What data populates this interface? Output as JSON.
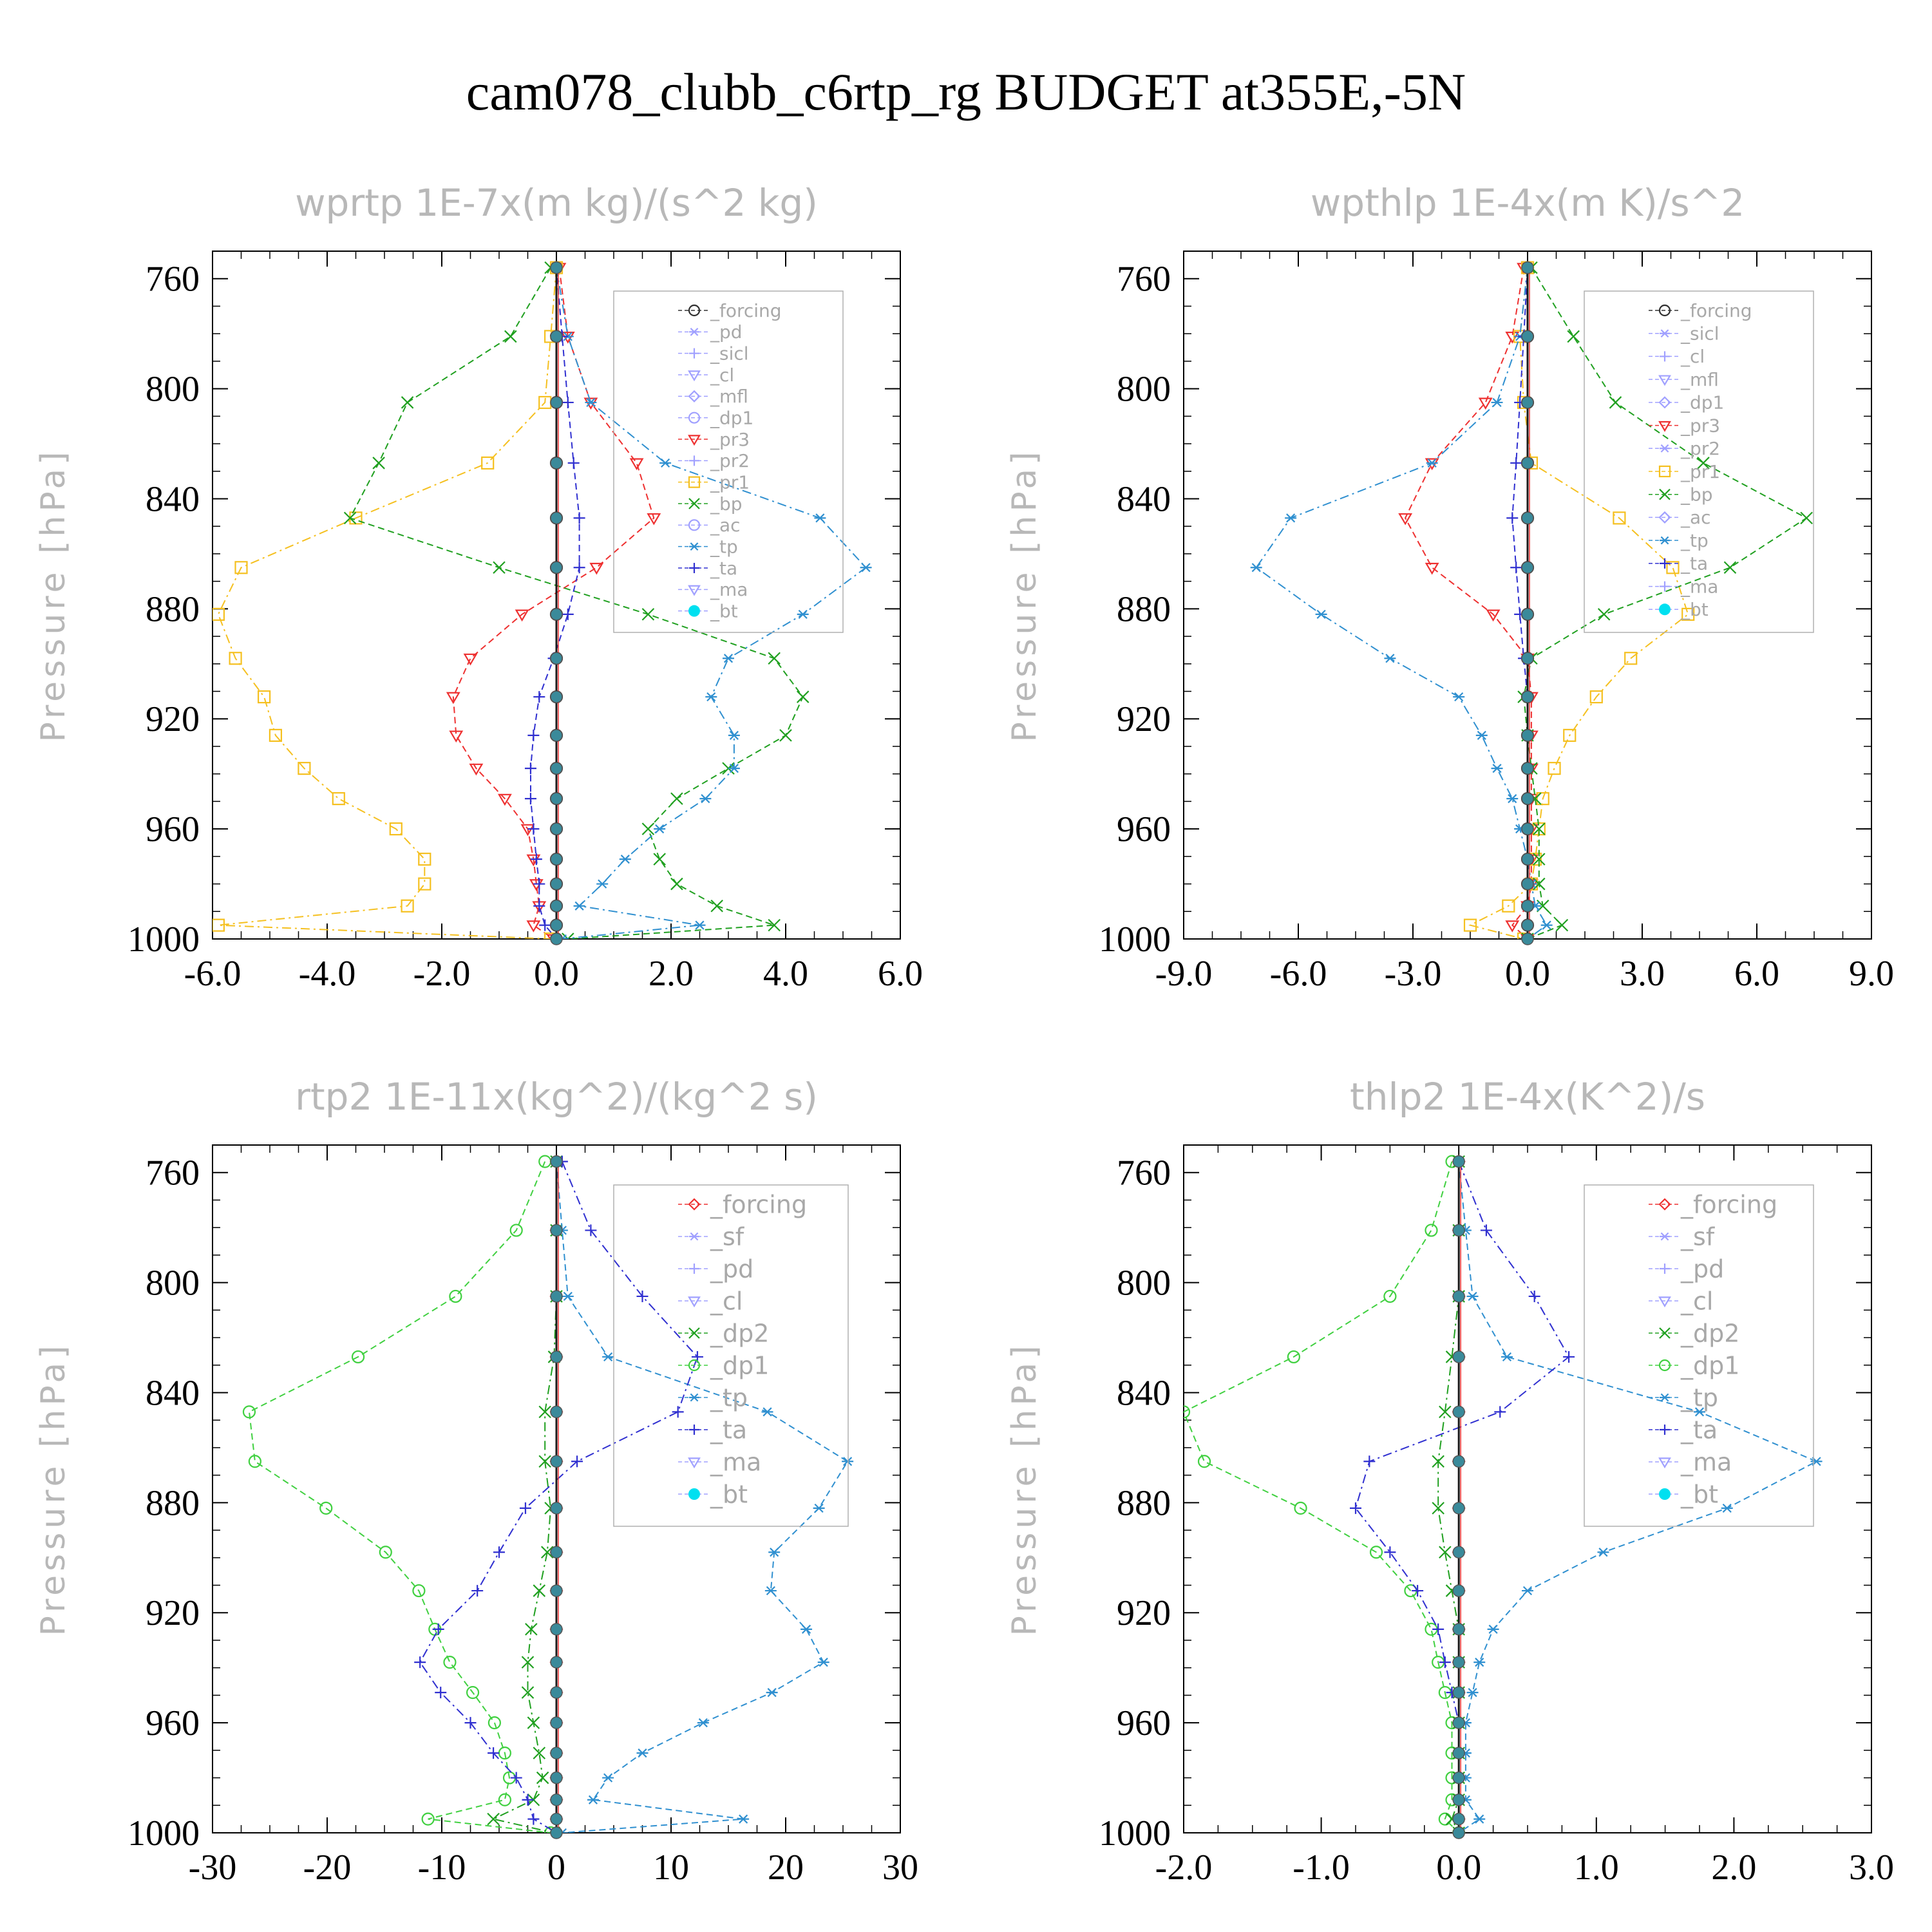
{
  "title": "cam078_clubb_c6rtp_rg  BUDGET at355E,-5N",
  "chart_data": [
    {
      "type": "line",
      "title": "wprtp   1E-7x(m kg)/(s^2 kg)",
      "ylabel": "Pressure [hPa]",
      "xlim": [
        -6,
        6
      ],
      "ylim": [
        750,
        1000
      ],
      "x_ticks": [
        -6,
        -4,
        -2,
        0,
        2,
        4,
        6
      ],
      "x_tick_labels": [
        "-6.0",
        "-4.0",
        "-2.0",
        "0.0",
        "2.0",
        "4.0",
        "6.0"
      ],
      "y_ticks": [
        760,
        800,
        840,
        880,
        920,
        960,
        1000
      ],
      "y_tick_labels": [
        "760",
        "800",
        "840",
        "880",
        "920",
        "960",
        "1000"
      ],
      "levels": [
        756,
        781,
        805,
        827,
        847,
        865,
        882,
        898,
        912,
        926,
        938,
        949,
        960,
        971,
        980,
        988,
        995,
        1000
      ],
      "legend": [
        "_forcing",
        "_pd",
        "_sicl",
        "_cl",
        "_mfl",
        "_dp1",
        "_pr3",
        "_pr2",
        "_pr1",
        "_bp",
        "_ac",
        "_tp",
        "_ta",
        "_ma",
        "_bt"
      ],
      "series": [
        {
          "name": "_forcing",
          "color": "#303030",
          "marker": "circle",
          "values": [
            0,
            0,
            0,
            0,
            0,
            0,
            0,
            0,
            0,
            0,
            0,
            0,
            0,
            0,
            0,
            0,
            0,
            0
          ]
        },
        {
          "name": "_pr3",
          "color": "#ee3030",
          "marker": "tri-down",
          "values": [
            0.05,
            0.2,
            0.6,
            1.4,
            1.7,
            0.7,
            -0.6,
            -1.5,
            -1.8,
            -1.75,
            -1.4,
            -0.9,
            -0.5,
            -0.4,
            -0.35,
            -0.3,
            -0.4,
            -0.05
          ]
        },
        {
          "name": "_pr1",
          "color": "#f5c020",
          "marker": "square",
          "values": [
            0,
            -0.1,
            -0.2,
            -1.2,
            -3.5,
            -5.5,
            -5.9,
            -5.6,
            -5.1,
            -4.9,
            -4.4,
            -3.8,
            -2.8,
            -2.3,
            -2.3,
            -2.6,
            -5.9,
            -0.1
          ]
        },
        {
          "name": "_bp",
          "color": "#20a020",
          "marker": "x",
          "values": [
            -0.1,
            -0.8,
            -2.6,
            -3.1,
            -3.6,
            -1,
            1.6,
            3.8,
            4.3,
            4,
            3,
            2.1,
            1.6,
            1.8,
            2.1,
            2.8,
            3.8,
            0.2
          ]
        },
        {
          "name": "_tp",
          "color": "#3090d0",
          "marker": "star",
          "values": [
            0,
            0.2,
            0.6,
            1.9,
            4.6,
            5.4,
            4.3,
            3,
            2.7,
            3.1,
            3.1,
            2.6,
            1.8,
            1.2,
            0.8,
            0.4,
            2.5,
            0.1
          ]
        },
        {
          "name": "_ta",
          "color": "#3030d0",
          "marker": "plus",
          "values": [
            0,
            0.1,
            0.2,
            0.3,
            0.4,
            0.4,
            0.2,
            -0.05,
            -0.3,
            -0.4,
            -0.45,
            -0.45,
            -0.4,
            -0.35,
            -0.3,
            -0.3,
            -0.2,
            0
          ]
        }
      ]
    },
    {
      "type": "line",
      "title": "wpthlp   1E-4x(m K)/s^2",
      "ylabel": "Pressure [hPa]",
      "xlim": [
        -9,
        9
      ],
      "ylim": [
        750,
        1000
      ],
      "x_ticks": [
        -9,
        -6,
        -3,
        0,
        3,
        6,
        9
      ],
      "x_tick_labels": [
        "-9.0",
        "-6.0",
        "-3.0",
        "0.0",
        "3.0",
        "6.0",
        "9.0"
      ],
      "y_ticks": [
        760,
        800,
        840,
        880,
        920,
        960,
        1000
      ],
      "y_tick_labels": [
        "760",
        "800",
        "840",
        "880",
        "920",
        "960",
        "1000"
      ],
      "levels": [
        756,
        781,
        805,
        827,
        847,
        865,
        882,
        898,
        912,
        926,
        938,
        949,
        960,
        971,
        980,
        988,
        995,
        1000
      ],
      "legend": [
        "_forcing",
        "_sicl",
        "_cl",
        "_mfl",
        "_dp1",
        "_pr3",
        "_pr2",
        "_pr1",
        "_bp",
        "_ac",
        "_tp",
        "_ta",
        "_ma",
        "_bt"
      ],
      "series": [
        {
          "name": "_forcing",
          "color": "#303030",
          "marker": "circle",
          "values": [
            0,
            0,
            0,
            0,
            0,
            0,
            0,
            0,
            0,
            0,
            0,
            0,
            0,
            0,
            0,
            0,
            0,
            0
          ]
        },
        {
          "name": "_pr3",
          "color": "#ee3030",
          "marker": "tri-down",
          "values": [
            -0.1,
            -0.4,
            -1.1,
            -2.5,
            -3.2,
            -2.5,
            -0.9,
            0,
            0.1,
            0.1,
            0.1,
            0.1,
            0.1,
            0.1,
            0.1,
            0,
            -0.4,
            0
          ]
        },
        {
          "name": "_pr1",
          "color": "#f5c020",
          "marker": "square",
          "values": [
            0,
            -0.2,
            -0.1,
            0.1,
            2.4,
            3.8,
            4.2,
            2.7,
            1.8,
            1.1,
            0.7,
            0.4,
            0.3,
            0.2,
            0.1,
            -0.5,
            -1.5,
            -0.1
          ]
        },
        {
          "name": "_bp",
          "color": "#20a020",
          "marker": "x",
          "values": [
            0.1,
            1.2,
            2.3,
            4.6,
            7.3,
            5.3,
            2,
            0.1,
            -0.1,
            0,
            0.1,
            0.2,
            0.3,
            0.3,
            0.3,
            0.4,
            0.9,
            0
          ]
        },
        {
          "name": "_tp",
          "color": "#3090d0",
          "marker": "star",
          "values": [
            0,
            -0.2,
            -0.8,
            -2.5,
            -6.2,
            -7.1,
            -5.4,
            -3.6,
            -1.8,
            -1.2,
            -0.8,
            -0.4,
            -0.2,
            0,
            0.1,
            0.2,
            0.5,
            0
          ]
        },
        {
          "name": "_ta",
          "color": "#3030d0",
          "marker": "plus",
          "values": [
            0,
            -0.1,
            -0.2,
            -0.3,
            -0.4,
            -0.3,
            -0.2,
            -0.1,
            0,
            0,
            0,
            0,
            0,
            0,
            0,
            0,
            0,
            0
          ]
        }
      ]
    },
    {
      "type": "line",
      "title": "rtp2   1E-11x(kg^2)/(kg^2 s)",
      "ylabel": "Pressure [hPa]",
      "xlim": [
        -30,
        30
      ],
      "ylim": [
        750,
        1000
      ],
      "x_ticks": [
        -30,
        -20,
        -10,
        0,
        10,
        20,
        30
      ],
      "x_tick_labels": [
        "-30",
        "-20",
        "-10",
        "0",
        "10",
        "20",
        "30"
      ],
      "y_ticks": [
        760,
        800,
        840,
        880,
        920,
        960,
        1000
      ],
      "y_tick_labels": [
        "760",
        "800",
        "840",
        "880",
        "920",
        "960",
        "1000"
      ],
      "levels": [
        756,
        781,
        805,
        827,
        847,
        865,
        882,
        898,
        912,
        926,
        938,
        949,
        960,
        971,
        980,
        988,
        995,
        1000
      ],
      "legend": [
        "_forcing",
        "_sf",
        "_pd",
        "_cl",
        "_dp2",
        "_dp1",
        "_tp",
        "_ta",
        "_ma",
        "_bt"
      ],
      "series": [
        {
          "name": "_forcing",
          "color": "#ee3030",
          "marker": "diamond",
          "values": [
            0,
            0,
            0,
            0,
            0,
            0,
            0,
            0,
            0,
            0,
            0,
            0,
            0,
            0,
            0,
            0,
            0,
            0
          ]
        },
        {
          "name": "_dp1",
          "color": "#40d040",
          "marker": "circle",
          "values": [
            -1,
            -3.5,
            -8.8,
            -17.3,
            -26.8,
            -26.3,
            -20.1,
            -14.9,
            -12,
            -10.6,
            -9.3,
            -7.3,
            -5.4,
            -4.5,
            -4.1,
            -4.5,
            -11.2,
            -0.5
          ]
        },
        {
          "name": "_dp2",
          "color": "#20a020",
          "marker": "x",
          "values": [
            0,
            0,
            0,
            -0.2,
            -1,
            -1,
            -0.5,
            -0.8,
            -1.5,
            -2.2,
            -2.5,
            -2.5,
            -2,
            -1.5,
            -1.2,
            -2,
            -5.5,
            -0.2
          ]
        },
        {
          "name": "_tp",
          "color": "#3090d0",
          "marker": "star",
          "values": [
            0,
            0.5,
            1,
            4.5,
            18.4,
            25.4,
            22.9,
            19,
            18.7,
            21.8,
            23.3,
            18.8,
            12.8,
            7.5,
            4.5,
            3.2,
            16.3,
            0.5
          ]
        },
        {
          "name": "_ta",
          "color": "#3030d0",
          "marker": "plus",
          "values": [
            0.5,
            3,
            7.5,
            12.3,
            10.6,
            1.8,
            -2.7,
            -5,
            -6.9,
            -10.3,
            -11.9,
            -10.1,
            -7.5,
            -5.5,
            -3.5,
            -2.5,
            -2,
            0
          ]
        }
      ]
    },
    {
      "type": "line",
      "title": "thlp2   1E-4x(K^2)/s",
      "ylabel": "Pressure [hPa]",
      "xlim": [
        -2,
        3
      ],
      "ylim": [
        750,
        1000
      ],
      "x_ticks": [
        -2,
        -1,
        0,
        1,
        2,
        3
      ],
      "x_tick_labels": [
        "-2.0",
        "-1.0",
        "0.0",
        "1.0",
        "2.0",
        "3.0"
      ],
      "y_ticks": [
        760,
        800,
        840,
        880,
        920,
        960,
        1000
      ],
      "y_tick_labels": [
        "760",
        "800",
        "840",
        "880",
        "920",
        "960",
        "1000"
      ],
      "levels": [
        756,
        781,
        805,
        827,
        847,
        865,
        882,
        898,
        912,
        926,
        938,
        949,
        960,
        971,
        980,
        988,
        995,
        1000
      ],
      "legend": [
        "_forcing",
        "_sf",
        "_pd",
        "_cl",
        "_dp2",
        "_dp1",
        "_tp",
        "_ta",
        "_ma",
        "_bt"
      ],
      "series": [
        {
          "name": "_forcing",
          "color": "#ee3030",
          "marker": "diamond",
          "values": [
            0,
            0,
            0,
            0,
            0,
            0,
            0,
            0,
            0,
            0,
            0,
            0,
            0,
            0,
            0,
            0,
            0,
            0
          ]
        },
        {
          "name": "_dp1",
          "color": "#40d040",
          "marker": "circle",
          "values": [
            -0.05,
            -0.2,
            -0.5,
            -1.2,
            -2,
            -1.85,
            -1.15,
            -0.6,
            -0.35,
            -0.2,
            -0.15,
            -0.1,
            -0.05,
            -0.05,
            -0.05,
            -0.05,
            -0.1,
            0
          ]
        },
        {
          "name": "_dp2",
          "color": "#20a020",
          "marker": "x",
          "values": [
            0,
            0,
            0,
            -0.05,
            -0.1,
            -0.15,
            -0.15,
            -0.1,
            -0.05,
            0,
            0,
            0,
            0,
            0,
            0,
            0,
            -0.05,
            0
          ]
        },
        {
          "name": "_tp",
          "color": "#3090d0",
          "marker": "star",
          "values": [
            0,
            0.05,
            0.1,
            0.35,
            1.75,
            2.6,
            1.95,
            1.05,
            0.5,
            0.25,
            0.15,
            0.1,
            0.05,
            0.05,
            0.05,
            0.05,
            0.15,
            0
          ]
        },
        {
          "name": "_ta",
          "color": "#3030d0",
          "marker": "plus",
          "values": [
            0,
            0.2,
            0.55,
            0.8,
            0.3,
            -0.65,
            -0.75,
            -0.5,
            -0.3,
            -0.15,
            -0.1,
            -0.05,
            0,
            0,
            0,
            0,
            0,
            0
          ]
        }
      ]
    }
  ]
}
